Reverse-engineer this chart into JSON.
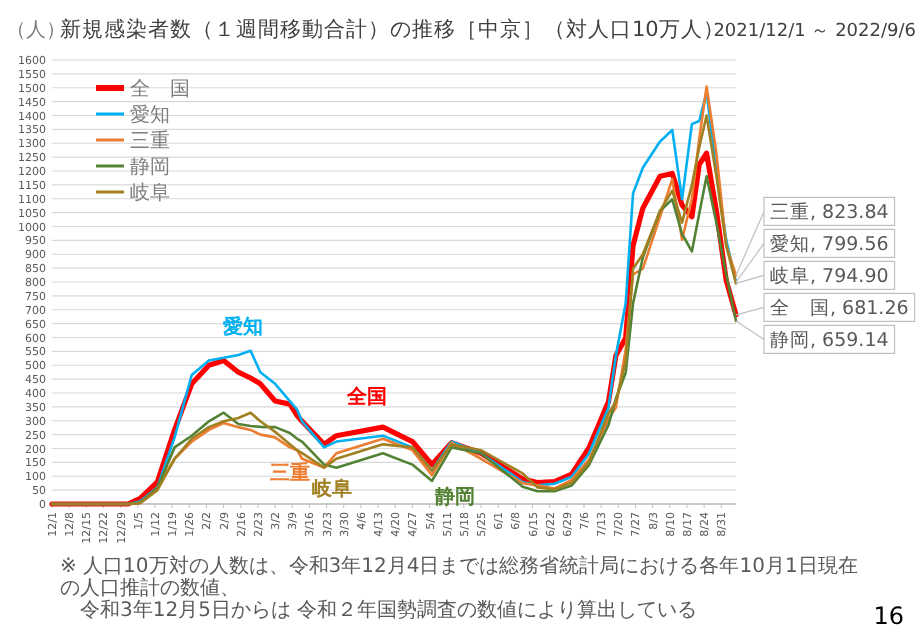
{
  "chart_data": {
    "type": "line",
    "title": "新規感染者数（１週間移動合計）の推移［中京］（対人口10万人）",
    "subtitle": "2021/12/1 ～ 2022/9/6",
    "ylabel": "（人）",
    "x": [
      "2021-12-01",
      "2022-01-01",
      "2022-01-06",
      "2022-01-13",
      "2022-01-20",
      "2022-01-27",
      "2022-02-03",
      "2022-02-09",
      "2022-02-15",
      "2022-02-20",
      "2022-02-24",
      "2022-03-02",
      "2022-03-08",
      "2022-03-11",
      "2022-03-13",
      "2022-03-22",
      "2022-03-27",
      "2022-04-15",
      "2022-04-27",
      "2022-05-05",
      "2022-05-13",
      "2022-05-25",
      "2022-06-11",
      "2022-06-17",
      "2022-06-24",
      "2022-07-01",
      "2022-07-08",
      "2022-07-16",
      "2022-07-19",
      "2022-07-23",
      "2022-07-26",
      "2022-07-30",
      "2022-08-06",
      "2022-08-11",
      "2022-08-15",
      "2022-08-19",
      "2022-08-22",
      "2022-08-25",
      "2022-08-29",
      "2022-09-02",
      "2022-09-06"
    ],
    "series": [
      {
        "name": "全　国",
        "color": "#ff0000",
        "values": [
          0,
          0,
          20,
          80,
          267,
          433,
          500,
          517,
          475,
          454,
          433,
          371,
          360,
          319,
          298,
          215,
          246,
          277,
          225,
          142,
          221,
          183,
          90,
          77,
          81,
          108,
          202,
          369,
          535,
          598,
          931,
          1066,
          1181,
          1191,
          1077,
          1035,
          1223,
          1264,
          1056,
          806,
          681.26
        ]
      },
      {
        "name": "愛知",
        "color": "#00b0f0",
        "values": [
          0,
          0,
          10,
          60,
          240,
          465,
          517,
          527,
          537,
          552,
          475,
          433,
          371,
          340,
          298,
          204,
          225,
          246,
          204,
          121,
          225,
          183,
          79,
          67,
          73,
          98,
          181,
          348,
          535,
          723,
          1119,
          1212,
          1306,
          1348,
          1098,
          1369,
          1380,
          1483,
          1202,
          952,
          799.56
        ]
      },
      {
        "name": "三重",
        "color": "#ed7d31",
        "values": [
          0,
          0,
          5,
          58,
          163,
          225,
          267,
          292,
          277,
          267,
          250,
          240,
          204,
          194,
          163,
          131,
          183,
          235,
          194,
          104,
          221,
          163,
          75,
          67,
          56,
          87,
          160,
          306,
          348,
          556,
          827,
          848,
          1035,
          1171,
          952,
          1100,
          1316,
          1504,
          1264,
          931,
          823.84
        ]
      },
      {
        "name": "静岡",
        "color": "#548235",
        "values": [
          0,
          0,
          5,
          58,
          204,
          246,
          298,
          329,
          288,
          281,
          278,
          277,
          256,
          235,
          225,
          142,
          131,
          183,
          142,
          83,
          204,
          183,
          62,
          46,
          46,
          67,
          140,
          285,
          380,
          473,
          723,
          889,
          1056,
          1098,
          973,
          910,
          1046,
          1181,
          1014,
          827,
          659.14
        ]
      },
      {
        "name": "岐阜",
        "color": "#a08020",
        "values": [
          0,
          0,
          3,
          50,
          163,
          235,
          277,
          298,
          310,
          329,
          298,
          260,
          215,
          194,
          183,
          131,
          163,
          215,
          204,
          121,
          215,
          194,
          110,
          60,
          52,
          77,
          150,
          327,
          369,
          515,
          848,
          900,
          1056,
          1129,
          1014,
          1150,
          1285,
          1400,
          1181,
          931,
          794.9
        ]
      }
    ],
    "xlim": [
      "2021-12-01",
      "2022-09-06"
    ],
    "xticks": [
      {
        "value": "2021-12-01",
        "label": "12/1"
      },
      {
        "value": "2021-12-08",
        "label": "12/8"
      },
      {
        "value": "2021-12-15",
        "label": "12/15"
      },
      {
        "value": "2021-12-22",
        "label": "12/22"
      },
      {
        "value": "2021-12-29",
        "label": "12/29"
      },
      {
        "value": "2022-01-05",
        "label": "1/5"
      },
      {
        "value": "2022-01-12",
        "label": "1/12"
      },
      {
        "value": "2022-01-19",
        "label": "1/19"
      },
      {
        "value": "2022-01-26",
        "label": "1/26"
      },
      {
        "value": "2022-02-02",
        "label": "2/2"
      },
      {
        "value": "2022-02-09",
        "label": "2/9"
      },
      {
        "value": "2022-02-16",
        "label": "2/16"
      },
      {
        "value": "2022-02-23",
        "label": "2/23"
      },
      {
        "value": "2022-03-02",
        "label": "3/2"
      },
      {
        "value": "2022-03-09",
        "label": "3/9"
      },
      {
        "value": "2022-03-16",
        "label": "3/16"
      },
      {
        "value": "2022-03-23",
        "label": "3/23"
      },
      {
        "value": "2022-03-30",
        "label": "3/30"
      },
      {
        "value": "2022-04-06",
        "label": "4/6"
      },
      {
        "value": "2022-04-13",
        "label": "4/13"
      },
      {
        "value": "2022-04-20",
        "label": "4/20"
      },
      {
        "value": "2022-04-27",
        "label": "4/27"
      },
      {
        "value": "2022-05-04",
        "label": "5/4"
      },
      {
        "value": "2022-05-11",
        "label": "5/11"
      },
      {
        "value": "2022-05-18",
        "label": "5/18"
      },
      {
        "value": "2022-05-25",
        "label": "5/25"
      },
      {
        "value": "2022-06-01",
        "label": "6/1"
      },
      {
        "value": "2022-06-08",
        "label": "6/8"
      },
      {
        "value": "2022-06-15",
        "label": "6/15"
      },
      {
        "value": "2022-06-22",
        "label": "6/22"
      },
      {
        "value": "2022-06-29",
        "label": "6/29"
      },
      {
        "value": "2022-07-06",
        "label": "7/6"
      },
      {
        "value": "2022-07-13",
        "label": "7/13"
      },
      {
        "value": "2022-07-20",
        "label": "7/20"
      },
      {
        "value": "2022-07-27",
        "label": "7/27"
      },
      {
        "value": "2022-08-03",
        "label": "8/3"
      },
      {
        "value": "2022-08-10",
        "label": "8/10"
      },
      {
        "value": "2022-08-17",
        "label": "8/17"
      },
      {
        "value": "2022-08-24",
        "label": "8/24"
      },
      {
        "value": "2022-08-31",
        "label": "8/31"
      }
    ],
    "ylim": [
      0,
      1600
    ],
    "yticks": [
      0,
      50,
      100,
      150,
      200,
      250,
      300,
      350,
      400,
      450,
      500,
      550,
      600,
      650,
      700,
      750,
      800,
      850,
      900,
      950,
      1000,
      1050,
      1100,
      1150,
      1200,
      1250,
      1300,
      1350,
      1400,
      1450,
      1500,
      1550,
      1600
    ],
    "grid": "y",
    "legend": "top left",
    "annotations": [
      {
        "text": "愛知",
        "x": "2022-02-20",
        "y": 552
      },
      {
        "text": "全国",
        "x": "2022-04-15",
        "y": 277
      },
      {
        "text": "三重",
        "x": "2022-03-08",
        "y": 204
      },
      {
        "text": "岐阜",
        "x": "2022-03-27",
        "y": 163
      },
      {
        "text": "静岡",
        "x": "2022-06-11",
        "y": 62
      },
      {
        "text": "三重, 823.84",
        "x": "2022-09-06",
        "y": 823.84
      },
      {
        "text": "愛知, 799.56",
        "x": "2022-09-06",
        "y": 799.56
      },
      {
        "text": "岐阜, 794.90",
        "x": "2022-09-06",
        "y": 794.9
      },
      {
        "text": "全　国, 681.26",
        "x": "2022-09-06",
        "y": 681.26
      },
      {
        "text": "静岡, 659.14",
        "x": "2022-09-06",
        "y": 659.14
      },
      "※ 人口10万対の人数は、令和3年12月4日までは総務省統計局における各年10月1日現在の人口推計の数値、",
      "令和3年12月5日からは 令和２年国勢調査の数値により算出している",
      "16"
    ]
  }
}
